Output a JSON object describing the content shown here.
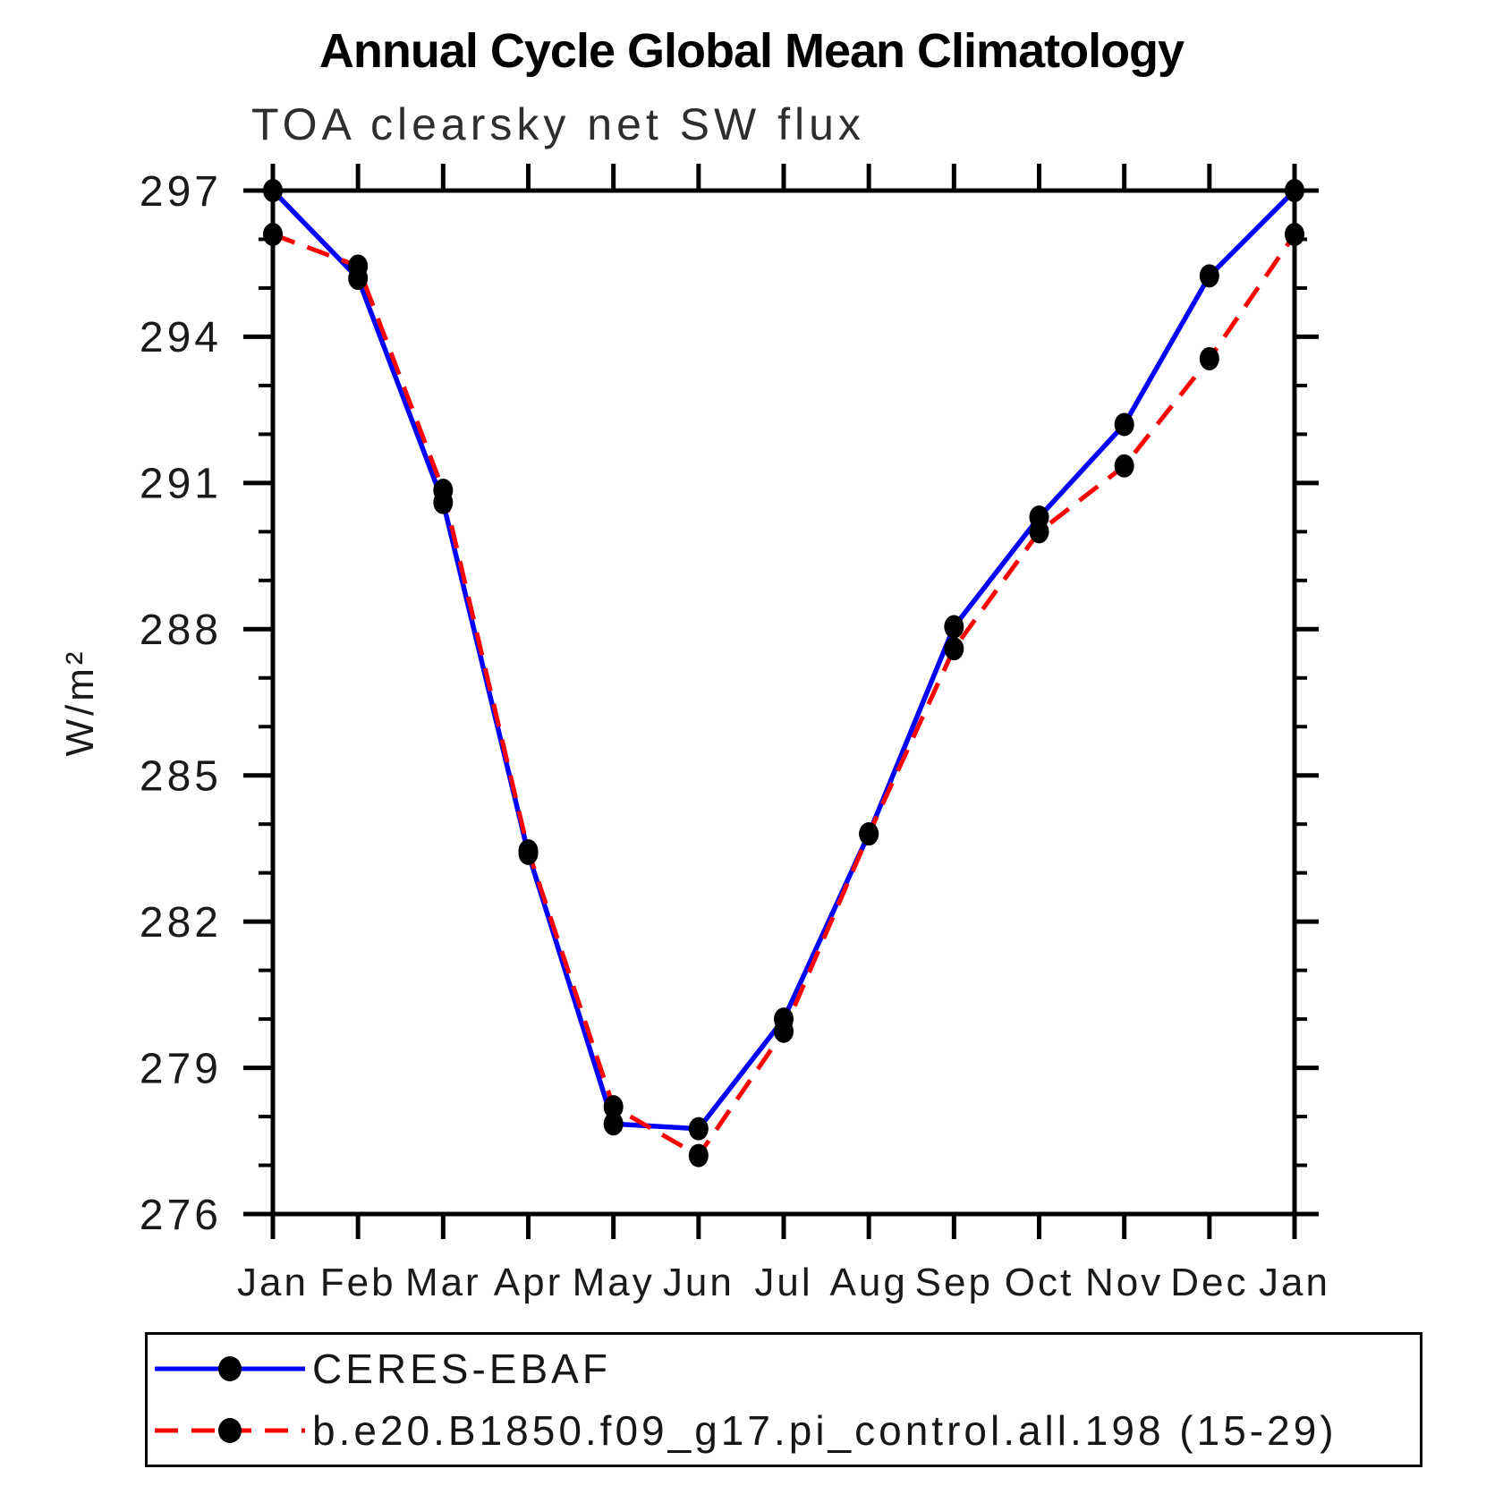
{
  "page": {
    "background": "#ffffff",
    "axis_color": "#000000",
    "marker_color": "#000000"
  },
  "chart_data": {
    "type": "line",
    "title": "Annual Cycle Global Mean Climatology",
    "subtitle": "TOA clearsky net SW flux",
    "ylabel": "W/m²",
    "xlabel": "",
    "categories": [
      "Jan",
      "Feb",
      "Mar",
      "Apr",
      "May",
      "Jun",
      "Jul",
      "Aug",
      "Sep",
      "Oct",
      "Nov",
      "Dec",
      "Jan"
    ],
    "ylim": [
      276,
      297
    ],
    "ytick_major_step": 3,
    "ytick_minor_step": 1,
    "ytick_labels": [
      "276",
      "279",
      "282",
      "285",
      "288",
      "291",
      "294",
      "297"
    ],
    "grid": false,
    "legend_position": "bottom",
    "series": [
      {
        "name": "CERES-EBAF",
        "color": "#0000ff",
        "line_style": "solid",
        "marker": "filled-black-circle",
        "values": [
          297.0,
          295.2,
          290.6,
          283.4,
          277.85,
          277.75,
          280.0,
          283.8,
          288.05,
          290.3,
          292.2,
          295.25,
          297.0
        ]
      },
      {
        "name": "b.e20.B1850.f09_g17.pi_control.all.198 (15-29)",
        "color": "#ff0000",
        "line_style": "dashed",
        "marker": "filled-black-circle",
        "values": [
          296.1,
          295.45,
          290.85,
          283.45,
          278.2,
          277.2,
          279.75,
          283.8,
          287.6,
          290.0,
          291.35,
          293.55,
          296.1
        ]
      }
    ]
  }
}
